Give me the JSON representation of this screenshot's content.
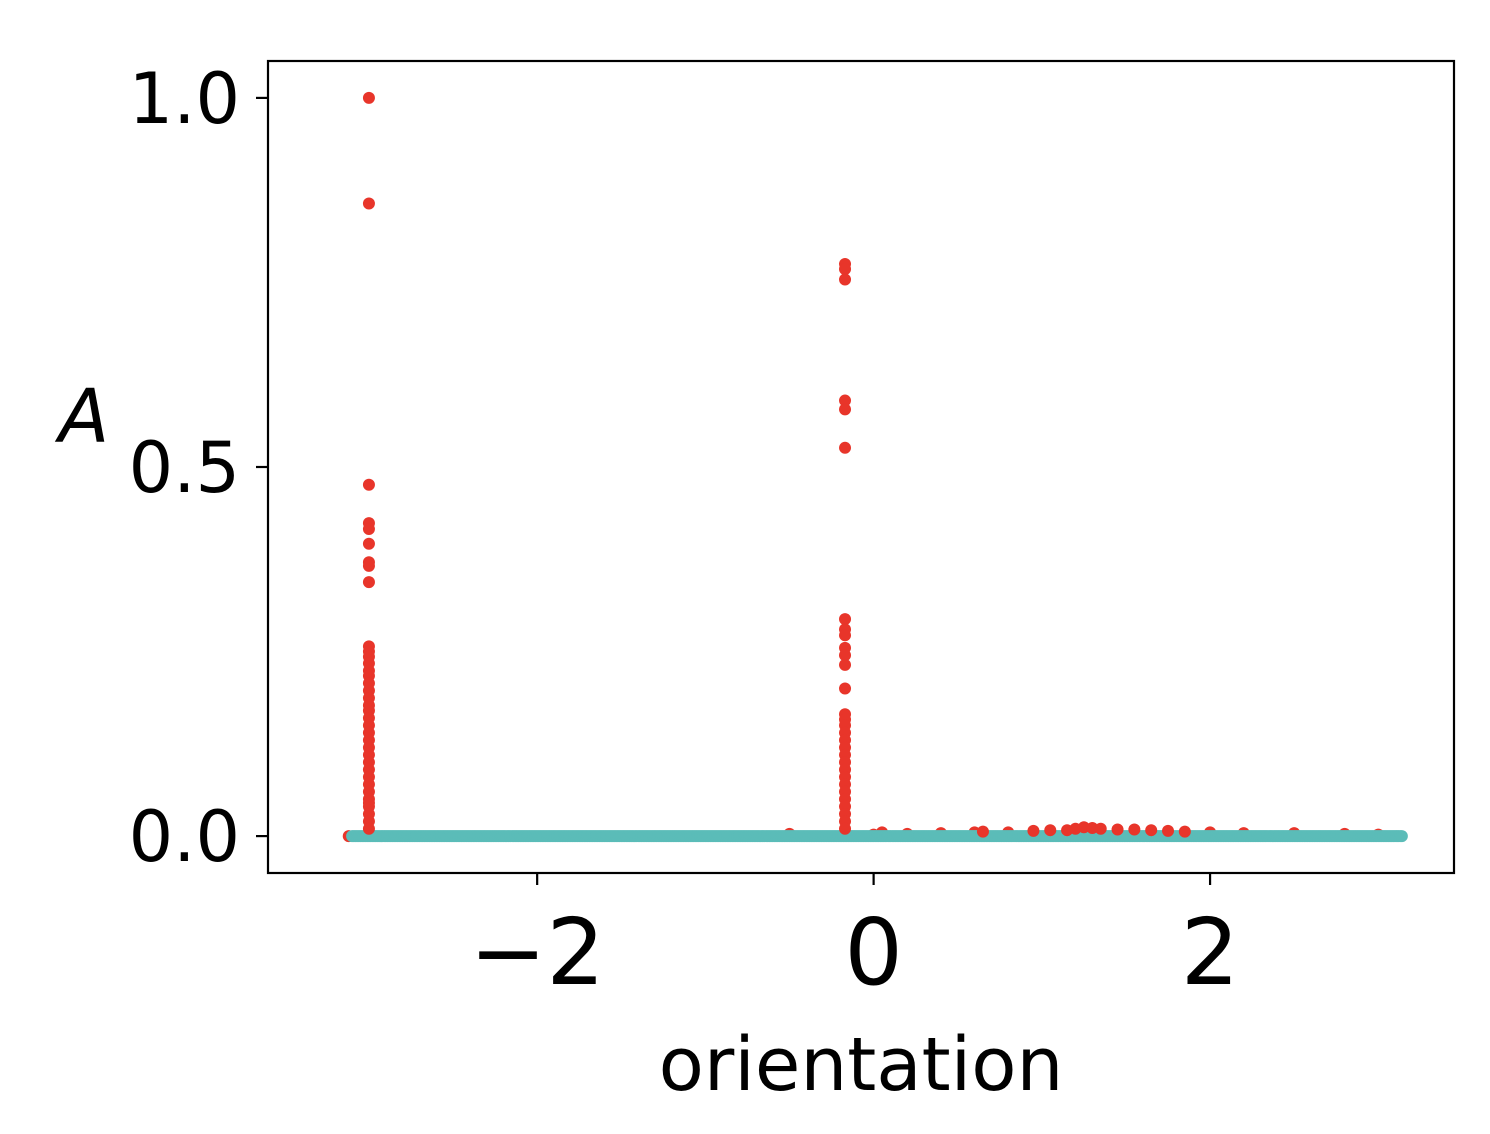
{
  "chart_data": {
    "type": "scatter",
    "title": "",
    "xlabel": "orientation",
    "ylabel": "A",
    "xlim": [
      -3.6,
      3.45
    ],
    "ylim": [
      -0.05,
      1.05
    ],
    "xticks": [
      -2,
      0,
      2
    ],
    "xtick_labels": [
      "−2",
      "0",
      "2"
    ],
    "yticks": [
      0.0,
      0.5,
      1.0
    ],
    "ytick_labels": [
      "0.0",
      "0.5",
      "1.0"
    ],
    "grid": false,
    "legend": "none",
    "colors": {
      "red_series": "#e8352a",
      "teal_series": "#5bbcb8",
      "axes": "#000000",
      "background": "#ffffff"
    },
    "series": [
      {
        "color": "#e8352a",
        "points": [
          [
            -3.12,
            0.0
          ],
          [
            -3.0,
            1.0
          ],
          [
            -3.0,
            0.857
          ],
          [
            -3.0,
            0.476
          ],
          [
            -3.0,
            0.424
          ],
          [
            -3.0,
            0.416
          ],
          [
            -3.0,
            0.396
          ],
          [
            -3.0,
            0.371
          ],
          [
            -3.0,
            0.366
          ],
          [
            -3.0,
            0.344
          ],
          [
            -3.0,
            0.257
          ],
          [
            -3.0,
            0.25
          ],
          [
            -3.0,
            0.243
          ],
          [
            -3.0,
            0.234
          ],
          [
            -3.0,
            0.224
          ],
          [
            -3.0,
            0.217
          ],
          [
            -3.0,
            0.207
          ],
          [
            -3.0,
            0.197
          ],
          [
            -3.0,
            0.187
          ],
          [
            -3.0,
            0.177
          ],
          [
            -3.0,
            0.17
          ],
          [
            -3.0,
            0.16
          ],
          [
            -3.0,
            0.15
          ],
          [
            -3.0,
            0.14
          ],
          [
            -3.0,
            0.13
          ],
          [
            -3.0,
            0.12
          ],
          [
            -3.0,
            0.11
          ],
          [
            -3.0,
            0.1
          ],
          [
            -3.0,
            0.09
          ],
          [
            -3.0,
            0.08
          ],
          [
            -3.0,
            0.07
          ],
          [
            -3.0,
            0.06
          ],
          [
            -3.0,
            0.05
          ],
          [
            -3.0,
            0.045
          ],
          [
            -3.0,
            0.04
          ],
          [
            -3.0,
            0.03
          ],
          [
            -3.0,
            0.02
          ],
          [
            -3.0,
            0.01
          ],
          [
            -3.0,
            0.005
          ],
          [
            -0.17,
            0.775
          ],
          [
            -0.17,
            0.768
          ],
          [
            -0.17,
            0.754
          ],
          [
            -0.17,
            0.59
          ],
          [
            -0.17,
            0.578
          ],
          [
            -0.17,
            0.526
          ],
          [
            -0.17,
            0.294
          ],
          [
            -0.17,
            0.28
          ],
          [
            -0.17,
            0.272
          ],
          [
            -0.17,
            0.255
          ],
          [
            -0.17,
            0.245
          ],
          [
            -0.17,
            0.232
          ],
          [
            -0.17,
            0.2
          ],
          [
            -0.17,
            0.165
          ],
          [
            -0.17,
            0.158
          ],
          [
            -0.17,
            0.15
          ],
          [
            -0.17,
            0.14
          ],
          [
            -0.17,
            0.13
          ],
          [
            -0.17,
            0.12
          ],
          [
            -0.17,
            0.11
          ],
          [
            -0.17,
            0.1
          ],
          [
            -0.17,
            0.09
          ],
          [
            -0.17,
            0.08
          ],
          [
            -0.17,
            0.07
          ],
          [
            -0.17,
            0.06
          ],
          [
            -0.17,
            0.05
          ],
          [
            -0.17,
            0.04
          ],
          [
            -0.17,
            0.03
          ],
          [
            -0.17,
            0.02
          ],
          [
            -0.17,
            0.01
          ],
          [
            -0.5,
            0.003
          ],
          [
            0.0,
            0.002
          ],
          [
            0.05,
            0.005
          ],
          [
            0.2,
            0.003
          ],
          [
            0.4,
            0.004
          ],
          [
            0.6,
            0.005
          ],
          [
            0.65,
            0.006
          ],
          [
            0.8,
            0.005
          ],
          [
            0.95,
            0.007
          ],
          [
            1.05,
            0.008
          ],
          [
            1.15,
            0.008
          ],
          [
            1.2,
            0.01
          ],
          [
            1.25,
            0.012
          ],
          [
            1.3,
            0.011
          ],
          [
            1.35,
            0.01
          ],
          [
            1.45,
            0.009
          ],
          [
            1.55,
            0.009
          ],
          [
            1.65,
            0.008
          ],
          [
            1.75,
            0.007
          ],
          [
            1.85,
            0.006
          ],
          [
            2.0,
            0.005
          ],
          [
            2.2,
            0.004
          ],
          [
            2.5,
            0.004
          ],
          [
            2.8,
            0.003
          ],
          [
            3.0,
            0.002
          ]
        ]
      },
      {
        "color": "#5bbcb8",
        "line_from_x": -3.1,
        "line_to_x": 3.14,
        "value": 0.0
      }
    ]
  }
}
